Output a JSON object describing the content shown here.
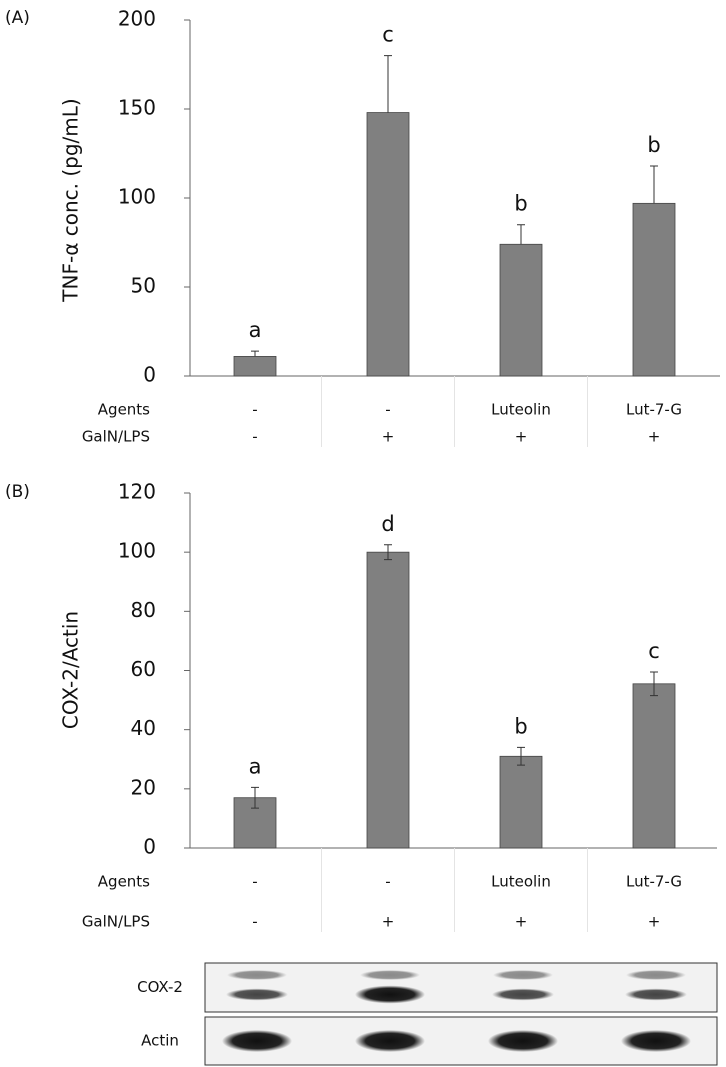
{
  "chart_data": [
    {
      "type": "bar",
      "panel": "(A)",
      "y_label": "TNF-α conc. (pg/mL)",
      "category_label": "Agents",
      "categories": [
        "-",
        "-",
        "Luteolin",
        "Lut-7-G"
      ],
      "subcategories": {
        "label": "GalN/LPS",
        "values": [
          "-",
          "+",
          "+",
          "+"
        ]
      },
      "values": [
        11,
        148,
        74,
        97
      ],
      "errors": [
        3,
        32,
        11,
        21
      ],
      "error_bars": "up",
      "annotations": [
        "a",
        "c",
        "b",
        "b"
      ],
      "color": "#808080",
      "ylim": [
        0,
        200
      ],
      "yticks": [
        0,
        50,
        100,
        150,
        200
      ]
    },
    {
      "type": "bar",
      "panel": "(B)",
      "y_label": "COX-2/Actin",
      "category_label": "Agents",
      "categories": [
        "-",
        "-",
        "Luteolin",
        "Lut-7-G"
      ],
      "subcategories": {
        "label": "GalN/LPS",
        "values": [
          "-",
          "+",
          "+",
          "+"
        ]
      },
      "values": [
        17,
        100,
        31,
        55.5
      ],
      "errors": [
        3.5,
        2.5,
        3,
        4
      ],
      "error_bars": "both",
      "annotations": [
        "a",
        "d",
        "b",
        "c"
      ],
      "color": "#808080",
      "ylim": [
        0,
        120
      ],
      "yticks": [
        0,
        20,
        40,
        60,
        80,
        100,
        120
      ],
      "blot": {
        "rows": [
          "COX-2",
          "Actin"
        ]
      }
    }
  ]
}
